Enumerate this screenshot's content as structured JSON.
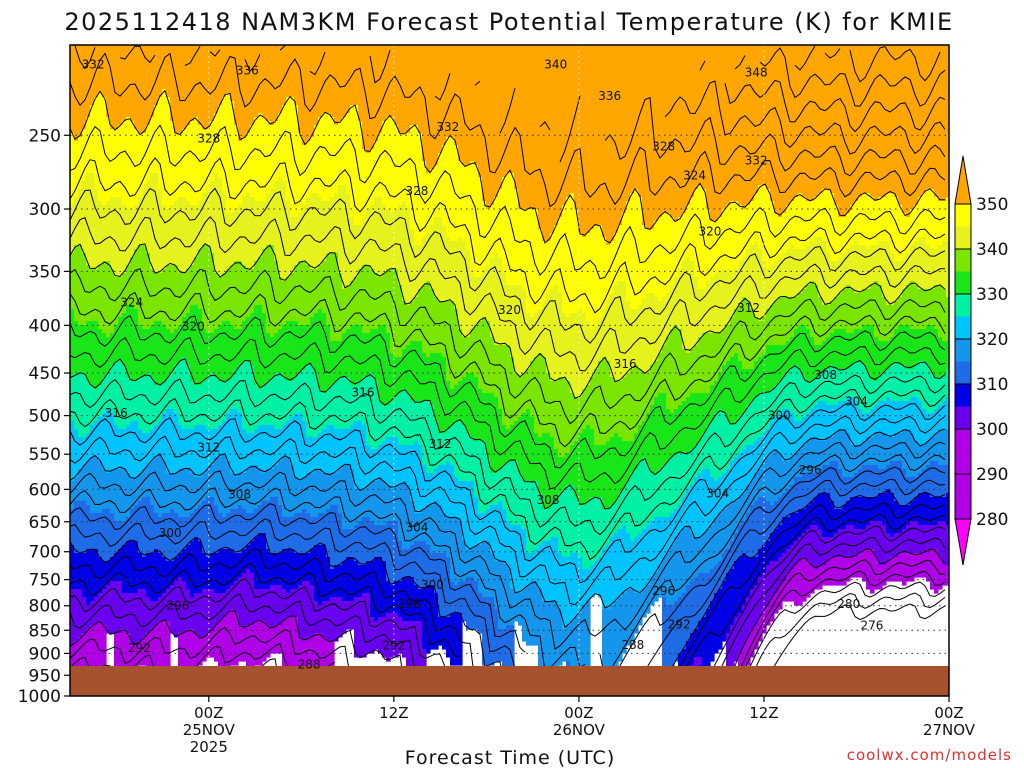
{
  "chart_data": {
    "type": "heatmap",
    "title": "2025112418 NAM3KM Forecast Potential Temperature (K) for KMIE",
    "xlabel": "Forecast Time (UTC)",
    "ylabel": "",
    "credit": "coolwx.com/models",
    "y_axis": {
      "scale": "log-pressure",
      "ticks": [
        250,
        300,
        350,
        400,
        450,
        500,
        550,
        600,
        650,
        700,
        750,
        800,
        850,
        900,
        950,
        1000
      ],
      "range": [
        200,
        1000
      ]
    },
    "x_axis": {
      "range_hours": [
        -3,
        54
      ],
      "ticks": [
        {
          "hour": 6,
          "lines": [
            "00Z",
            "25NOV",
            "2025"
          ]
        },
        {
          "hour": 18,
          "lines": [
            "12Z"
          ]
        },
        {
          "hour": 30,
          "lines": [
            "00Z",
            "26NOV"
          ]
        },
        {
          "hour": 42,
          "lines": [
            "12Z"
          ]
        },
        {
          "hour": 54,
          "lines": [
            "00Z",
            "27NOV"
          ]
        }
      ]
    },
    "grid": true,
    "colorbar": {
      "levels": [
        280,
        290,
        300,
        310,
        320,
        330,
        340,
        350
      ],
      "labels": [
        "280",
        "290",
        "300",
        "310",
        "320",
        "330",
        "340",
        "350"
      ],
      "colors": [
        "#ff00ff",
        "#b000e8",
        "#6a00f0",
        "#0000e6",
        "#1e6ce6",
        "#1496ec",
        "#00c3ff",
        "#00f0a6",
        "#19e619",
        "#7ae600",
        "#e6f21e",
        "#ffff00",
        "#ffa600"
      ]
    },
    "surface_color": "#a6522e",
    "contour_labels": [
      {
        "text": "332",
        "h": -1.5,
        "p": 210
      },
      {
        "text": "336",
        "h": 8.5,
        "p": 213
      },
      {
        "text": "340",
        "h": 28.5,
        "p": 210
      },
      {
        "text": "348",
        "h": 41.5,
        "p": 214
      },
      {
        "text": "336",
        "h": 32.0,
        "p": 227
      },
      {
        "text": "332",
        "h": 21.5,
        "p": 245
      },
      {
        "text": "328",
        "h": 6.0,
        "p": 252
      },
      {
        "text": "328",
        "h": 35.5,
        "p": 257
      },
      {
        "text": "332",
        "h": 41.5,
        "p": 266
      },
      {
        "text": "328",
        "h": 19.5,
        "p": 287
      },
      {
        "text": "324",
        "h": 37.5,
        "p": 276
      },
      {
        "text": "320",
        "h": 38.5,
        "p": 317
      },
      {
        "text": "324",
        "h": 1.0,
        "p": 378
      },
      {
        "text": "320",
        "h": 5.0,
        "p": 401
      },
      {
        "text": "320",
        "h": 25.5,
        "p": 385
      },
      {
        "text": "312",
        "h": 41.0,
        "p": 383
      },
      {
        "text": "316",
        "h": 33.0,
        "p": 440
      },
      {
        "text": "316",
        "h": 16.0,
        "p": 472
      },
      {
        "text": "308",
        "h": 46.0,
        "p": 452
      },
      {
        "text": "304",
        "h": 48.0,
        "p": 483
      },
      {
        "text": "316",
        "h": 0.0,
        "p": 497
      },
      {
        "text": "300",
        "h": 43.0,
        "p": 500
      },
      {
        "text": "312",
        "h": 6.0,
        "p": 541
      },
      {
        "text": "312",
        "h": 21.0,
        "p": 536
      },
      {
        "text": "296",
        "h": 45.0,
        "p": 572
      },
      {
        "text": "308",
        "h": 8.0,
        "p": 608
      },
      {
        "text": "308",
        "h": 28.0,
        "p": 616
      },
      {
        "text": "304",
        "h": 39.0,
        "p": 606
      },
      {
        "text": "304",
        "h": 19.5,
        "p": 659
      },
      {
        "text": "300",
        "h": 3.5,
        "p": 668
      },
      {
        "text": "300",
        "h": 20.5,
        "p": 760
      },
      {
        "text": "296",
        "h": 35.5,
        "p": 771
      },
      {
        "text": "296",
        "h": 4.0,
        "p": 800
      },
      {
        "text": "296",
        "h": 19.0,
        "p": 797
      },
      {
        "text": "280",
        "h": 47.5,
        "p": 797
      },
      {
        "text": "292",
        "h": 36.5,
        "p": 838
      },
      {
        "text": "276",
        "h": 49.0,
        "p": 840
      },
      {
        "text": "292",
        "h": 1.5,
        "p": 888
      },
      {
        "text": "292",
        "h": 18.0,
        "p": 883
      },
      {
        "text": "288",
        "h": 33.5,
        "p": 881
      },
      {
        "text": "288",
        "h": 12.5,
        "p": 925
      }
    ]
  }
}
